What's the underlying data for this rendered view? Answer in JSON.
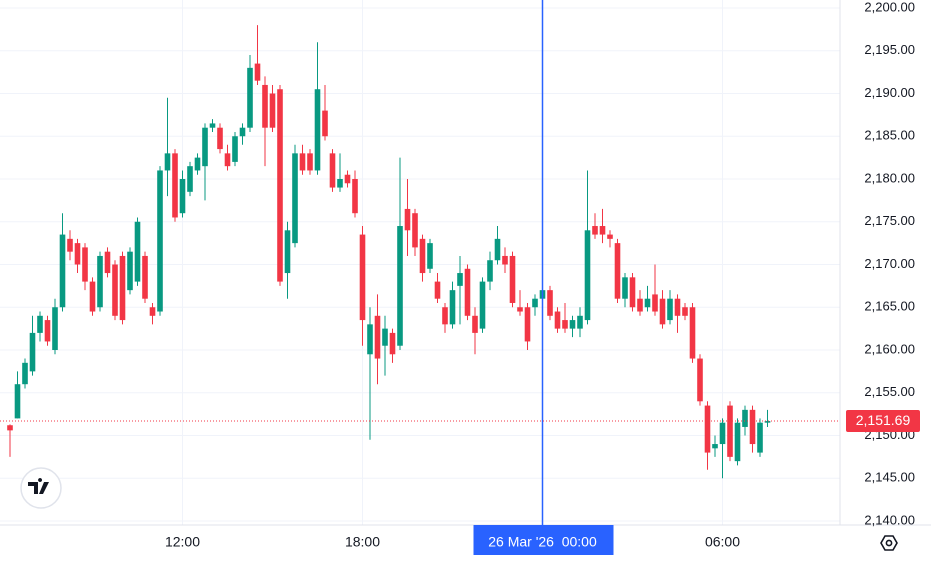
{
  "chart_data": {
    "type": "candlestick",
    "categories": [
      null,
      null,
      null,
      null,
      null,
      null,
      null,
      null,
      null,
      null,
      null,
      null,
      null,
      null,
      null,
      null,
      null,
      null,
      null,
      null,
      null,
      null,
      null,
      "12:00",
      null,
      null,
      null,
      null,
      null,
      null,
      null,
      null,
      null,
      null,
      null,
      null,
      null,
      null,
      null,
      null,
      null,
      null,
      null,
      null,
      null,
      null,
      null,
      "18:00",
      null,
      null,
      null,
      null,
      null,
      null,
      null,
      null,
      null,
      null,
      null,
      null,
      null,
      null,
      null,
      null,
      null,
      null,
      null,
      null,
      null,
      null,
      null,
      "26 Mar '26  00:00",
      null,
      null,
      null,
      null,
      null,
      null,
      null,
      null,
      null,
      null,
      null,
      null,
      null,
      null,
      null,
      null,
      null,
      null,
      null,
      null,
      null,
      null,
      null,
      "06:00",
      null,
      null,
      null,
      null,
      null,
      null
    ],
    "series": [
      {
        "up_color": "#089981",
        "down_color": "#f23645",
        "open": [
          2151.2,
          2152,
          2156,
          2157.5,
          2162,
          2163.5,
          2160,
          2165,
          2173,
          2172.5,
          2172,
          2168,
          2165,
          2171.5,
          2170,
          2171,
          2167,
          2168,
          2171,
          2165,
          2164.5,
          2181,
          2183,
          2176,
          2178.5,
          2181,
          2181.5,
          2186,
          2186,
          2183,
          2182,
          2185,
          2186,
          2193.5,
          2191,
          2190,
          2190.5,
          2169,
          2172.5,
          2183,
          2183,
          2181,
          2188,
          2183,
          2179,
          2180.5,
          2180,
          2173.5,
          2159.5,
          2164,
          2160.5,
          2162,
          2160.5,
          2176.5,
          2176,
          2173,
          2169.5,
          2168,
          2165,
          2163,
          2167.5,
          2169.5,
          2164,
          2162.5,
          2168,
          2170.5,
          2171,
          2171,
          2165,
          2165,
          2165,
          2166,
          2167,
          2164.5,
          2163.5,
          2162.5,
          2162.5,
          2163.5,
          2174.5,
          2174.5,
          2173.5,
          2172.5,
          2166,
          2168.5,
          2166,
          2165,
          2166.5,
          2166,
          2163.5,
          2166,
          2165,
          2165,
          2159,
          2153.5,
          2148.5,
          2149,
          2153.5,
          2147,
          2151,
          2153,
          2148,
          2151.5
        ],
        "high": [
          2151.3,
          2157.5,
          2159,
          2164,
          2164.5,
          2164,
          2166,
          2176,
          2174,
          2173,
          2172.5,
          2168.5,
          2171.5,
          2172,
          2170.5,
          2171.5,
          2172,
          2175.5,
          2171.5,
          2165.5,
          2181.5,
          2189.5,
          2183.5,
          2181,
          2182,
          2183,
          2186.5,
          2187,
          2186.5,
          2184,
          2185.5,
          2186.5,
          2194.5,
          2198,
          2192,
          2191,
          2191,
          2175,
          2184,
          2184,
          2183.5,
          2196,
          2191,
          2183.5,
          2183,
          2181,
          2181,
          2174.5,
          2165,
          2166.5,
          2164,
          2162.5,
          2182.5,
          2180,
          2176.5,
          2173.5,
          2173,
          2169,
          2165.5,
          2168,
          2171,
          2170,
          2165,
          2168.5,
          2171.5,
          2174.5,
          2172,
          2171.5,
          2167,
          2165.5,
          2166.5,
          2167.5,
          2167.5,
          2165,
          2165.5,
          2164,
          2165,
          2181,
          2176,
          2176.5,
          2174,
          2173,
          2169,
          2169,
          2167,
          2167.5,
          2170,
          2167,
          2167,
          2166.5,
          2165.5,
          2165.5,
          2159.5,
          2154,
          2150,
          2152,
          2154,
          2152,
          2153.5,
          2153.5,
          2152,
          2153
        ],
        "low": [
          2147.5,
          2152,
          2155.5,
          2157,
          2161,
          2160.5,
          2159.5,
          2164.5,
          2170.5,
          2169,
          2167,
          2164,
          2164.5,
          2168.5,
          2163.5,
          2163,
          2166.5,
          2167.5,
          2165.5,
          2163,
          2164,
          2178,
          2175,
          2175.5,
          2178,
          2180.5,
          2177.5,
          2185.5,
          2183,
          2181,
          2181.5,
          2184,
          2185.5,
          2191,
          2181.5,
          2185.5,
          2167.5,
          2166,
          2172,
          2180.5,
          2180.5,
          2180.5,
          2184.5,
          2178.5,
          2178.5,
          2179,
          2175.5,
          2160.5,
          2149.5,
          2156,
          2157,
          2158.5,
          2160,
          2171,
          2171,
          2168,
          2169,
          2165.5,
          2162,
          2162.5,
          2163,
          2163.5,
          2159.5,
          2162,
          2167,
          2170,
          2169,
          2165,
          2164,
          2160,
          2164,
          2165,
          2163.5,
          2162,
          2162,
          2161.5,
          2161.5,
          2163,
          2173,
          2172.5,
          2172,
          2165.5,
          2165,
          2164.5,
          2164,
          2164.5,
          2164,
          2162.5,
          2163,
          2162,
          2163.5,
          2158.5,
          2153.5,
          2146,
          2147.5,
          2145,
          2147,
          2146.5,
          2150,
          2148,
          2147.5,
          2151
        ],
        "close": [
          2150.6,
          2156,
          2158.5,
          2162,
          2164,
          2161,
          2165,
          2173.5,
          2171.5,
          2170,
          2168,
          2164.5,
          2171,
          2169,
          2164,
          2163.5,
          2171.5,
          2175,
          2166,
          2164,
          2181,
          2183,
          2175.5,
          2180,
          2181.5,
          2182.5,
          2186,
          2186.5,
          2183.5,
          2181.5,
          2185,
          2186,
          2193,
          2191.5,
          2186,
          2186,
          2168,
          2174,
          2183,
          2181,
          2181,
          2190.5,
          2185,
          2179,
          2180,
          2179.5,
          2176,
          2163.5,
          2163,
          2159,
          2162.5,
          2159.5,
          2174.5,
          2174,
          2172,
          2169,
          2172.5,
          2166,
          2163,
          2167,
          2169,
          2164,
          2162,
          2168,
          2170.5,
          2173,
          2170,
          2165.5,
          2164.5,
          2161,
          2166,
          2167,
          2164,
          2162.5,
          2162.5,
          2163.5,
          2164,
          2174,
          2173.5,
          2173.5,
          2173,
          2166,
          2168.5,
          2165,
          2164.5,
          2166,
          2164.5,
          2163,
          2166,
          2164,
          2164,
          2159,
          2154,
          2148,
          2149,
          2151.5,
          2147.5,
          2151.5,
          2153,
          2149,
          2151.5,
          2151.69
        ]
      }
    ],
    "last_price": {
      "value": 2151.69,
      "label": "2,151.69",
      "color": "#f23645"
    },
    "crosshair_color": "#2962ff",
    "ylim": [
      2140,
      2200
    ],
    "yticks": [
      {
        "value": 2140,
        "label": "2,140.00"
      },
      {
        "value": 2145,
        "label": "2,145.00"
      },
      {
        "value": 2150,
        "label": "2,150.00"
      },
      {
        "value": 2155,
        "label": "2,155.00"
      },
      {
        "value": 2160,
        "label": "2,160.00"
      },
      {
        "value": 2165,
        "label": "2,165.00"
      },
      {
        "value": 2170,
        "label": "2,170.00"
      },
      {
        "value": 2175,
        "label": "2,175.00"
      },
      {
        "value": 2180,
        "label": "2,180.00"
      },
      {
        "value": 2185,
        "label": "2,185.00"
      },
      {
        "value": 2190,
        "label": "2,190.00"
      },
      {
        "value": 2195,
        "label": "2,195.00"
      },
      {
        "value": 2200,
        "label": "2,200.00"
      }
    ],
    "grid": true
  }
}
